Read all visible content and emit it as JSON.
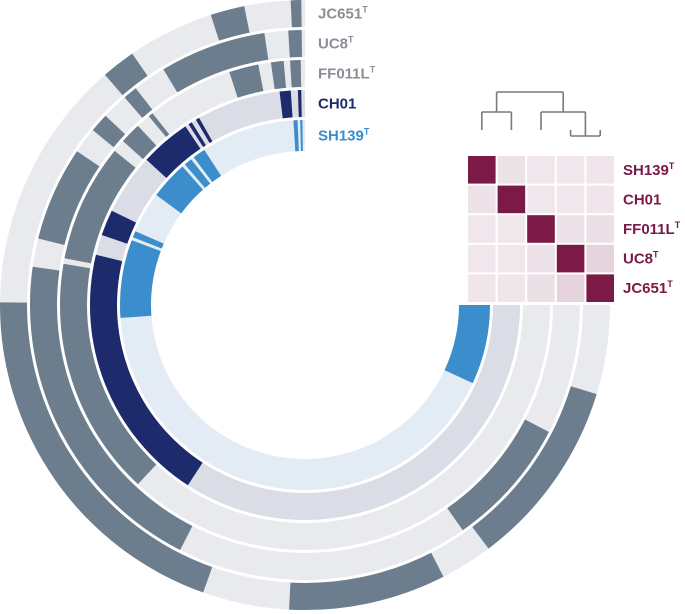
{
  "colors": {
    "track_light": "#e9eaee",
    "track_mid": "#dadde5",
    "track_pale_blue": "#e3ebf4",
    "slate": "#6c7d8e",
    "navy": "#1d2a6b",
    "blue": "#3b8ecb",
    "plum": "#7b1a46",
    "dendrogram": "#7a7a7a"
  },
  "rings": [
    {
      "label": "JC651",
      "sup": "T",
      "label_color": "#8a8f96",
      "track_color": "#e9eaee",
      "segment_color": "#6c7d8e",
      "segments": [
        [
          0.7,
          2.7
        ],
        [
          11.5,
          18.0
        ],
        [
          34.5,
          41.0
        ],
        [
          89.5,
          160.5
        ],
        [
          177.0,
          207.0
        ],
        [
          217.0,
          253.0
        ]
      ]
    },
    {
      "label": "UC8",
      "sup": "T",
      "label_color": "#8a8f96",
      "track_color": "#e9eaee",
      "segment_color": "#6c7d8e",
      "segments": [
        [
          0.7,
          3.5
        ],
        [
          8.5,
          31.0
        ],
        [
          38.0,
          41.0
        ],
        [
          46.5,
          50.5
        ],
        [
          56.0,
          76.0
        ],
        [
          82.0,
          153.0
        ],
        [
          215.0,
          242.5
        ]
      ]
    },
    {
      "label": "FF011L",
      "sup": "T",
      "label_color": "#8a8f96",
      "track_color": "#e9eaee",
      "segment_color": "#6c7d8e",
      "segments": [
        [
          1.0,
          3.5
        ],
        [
          5.0,
          8.0
        ],
        [
          11.0,
          18.0
        ],
        [
          38.5,
          39.6
        ],
        [
          43.0,
          48.0
        ],
        [
          51.0,
          79.0
        ],
        [
          80.3,
          137.0
        ]
      ]
    },
    {
      "label": "CH01",
      "sup": "",
      "label_color": "#1d2a6b",
      "track_color": "#dadde5",
      "segment_color": "#1d2a6b",
      "segments": [
        [
          1.0,
          1.9
        ],
        [
          3.8,
          6.8
        ],
        [
          29.5,
          30.5
        ],
        [
          31.8,
          32.8
        ],
        [
          33.8,
          47.5
        ],
        [
          64.0,
          71.0
        ],
        [
          76.5,
          147.0
        ]
      ]
    },
    {
      "label": "SH139",
      "sup": "T",
      "label_color": "#3b8ecb",
      "track_color": "#e3ebf4",
      "segment_color": "#3b8ecb",
      "segments": [
        [
          0.8,
          1.5
        ],
        [
          2.3,
          3.6
        ],
        [
          33.0,
          37.0
        ],
        [
          38.0,
          40.5
        ],
        [
          41.5,
          53.5
        ],
        [
          66.5,
          68.5
        ],
        [
          69.5,
          94.0
        ],
        [
          245.0,
          270.0
        ]
      ]
    }
  ],
  "matrix": {
    "labels": [
      {
        "name": "SH139",
        "sup": "T"
      },
      {
        "name": "CH01",
        "sup": ""
      },
      {
        "name": "FF011L",
        "sup": "T"
      },
      {
        "name": "UC8",
        "sup": "T"
      },
      {
        "name": "JC651",
        "sup": "T"
      }
    ],
    "values": [
      [
        1.0,
        0.14,
        0.1,
        0.1,
        0.12
      ],
      [
        0.14,
        1.0,
        0.1,
        0.1,
        0.12
      ],
      [
        0.1,
        0.1,
        1.0,
        0.14,
        0.16
      ],
      [
        0.1,
        0.1,
        0.14,
        1.0,
        0.26
      ],
      [
        0.12,
        0.12,
        0.16,
        0.26,
        1.0
      ]
    ]
  }
}
